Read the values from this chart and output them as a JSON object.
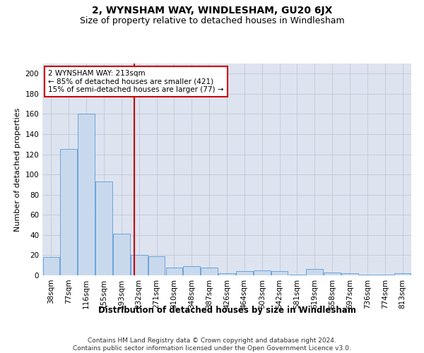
{
  "title": "2, WYNSHAM WAY, WINDLESHAM, GU20 6JX",
  "subtitle": "Size of property relative to detached houses in Windlesham",
  "xlabel": "Distribution of detached houses by size in Windlesham",
  "ylabel": "Number of detached properties",
  "categories": [
    "38sqm",
    "77sqm",
    "116sqm",
    "155sqm",
    "193sqm",
    "232sqm",
    "271sqm",
    "310sqm",
    "348sqm",
    "387sqm",
    "426sqm",
    "464sqm",
    "503sqm",
    "542sqm",
    "581sqm",
    "619sqm",
    "658sqm",
    "697sqm",
    "736sqm",
    "774sqm",
    "813sqm"
  ],
  "values": [
    18,
    125,
    160,
    93,
    41,
    20,
    19,
    8,
    9,
    8,
    2,
    4,
    5,
    4,
    1,
    6,
    3,
    2,
    1,
    1,
    2
  ],
  "bar_color": "#c9d9ed",
  "bar_edge_color": "#5b9bd5",
  "grid_color": "#c0c8d8",
  "background_color": "#dde4f0",
  "vline_x": 4.74,
  "vline_color": "#cc0000",
  "annotation_text": "2 WYNSHAM WAY: 213sqm\n← 85% of detached houses are smaller (421)\n15% of semi-detached houses are larger (77) →",
  "annotation_box_color": "#ffffff",
  "annotation_box_edge": "#cc0000",
  "ylim": [
    0,
    210
  ],
  "yticks": [
    0,
    20,
    40,
    60,
    80,
    100,
    120,
    140,
    160,
    180,
    200
  ],
  "footer": "Contains HM Land Registry data © Crown copyright and database right 2024.\nContains public sector information licensed under the Open Government Licence v3.0.",
  "title_fontsize": 10,
  "subtitle_fontsize": 9,
  "xlabel_fontsize": 8.5,
  "ylabel_fontsize": 8,
  "tick_fontsize": 7.5,
  "annotation_fontsize": 7.5,
  "footer_fontsize": 6.5
}
